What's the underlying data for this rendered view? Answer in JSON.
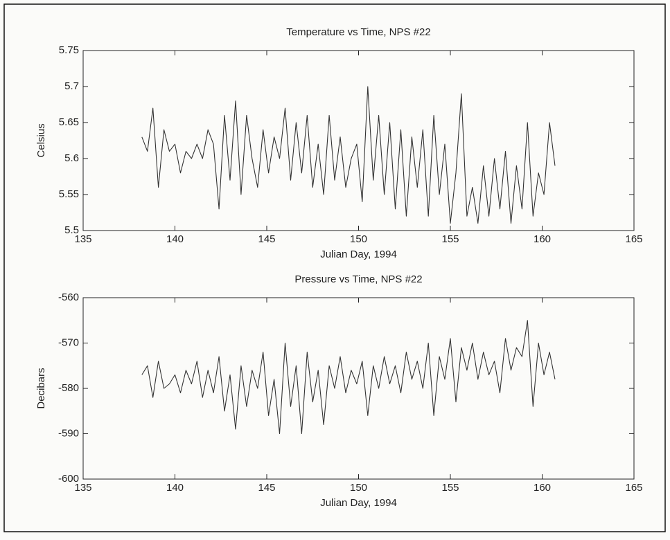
{
  "chart_data": [
    {
      "type": "line",
      "title": "Temperature vs Time, NPS #22",
      "xlabel": "Julian Day, 1994",
      "ylabel": "Celsius",
      "color": "#333333",
      "xlim": [
        135,
        165
      ],
      "xticks": [
        135,
        140,
        145,
        150,
        155,
        160,
        165
      ],
      "ylim": [
        5.5,
        5.75
      ],
      "yticks": [
        5.5,
        5.55,
        5.6,
        5.65,
        5.7,
        5.75
      ],
      "x": [
        138.2,
        138.5,
        138.8,
        139.1,
        139.4,
        139.7,
        140,
        140.3,
        140.6,
        140.9,
        141.2,
        141.5,
        141.8,
        142.1,
        142.4,
        142.7,
        143,
        143.3,
        143.6,
        143.9,
        144.2,
        144.5,
        144.8,
        145.1,
        145.4,
        145.7,
        146,
        146.3,
        146.6,
        146.9,
        147.2,
        147.5,
        147.8,
        148.1,
        148.4,
        148.7,
        149,
        149.3,
        149.6,
        149.9,
        150.2,
        150.5,
        150.8,
        151.1,
        151.4,
        151.7,
        152,
        152.3,
        152.6,
        152.9,
        153.2,
        153.5,
        153.8,
        154.1,
        154.4,
        154.7,
        155,
        155.3,
        155.6,
        155.9,
        156.2,
        156.5,
        156.8,
        157.1,
        157.4,
        157.7,
        158,
        158.3,
        158.6,
        158.9,
        159.2,
        159.5,
        159.8,
        160.1,
        160.4,
        160.7
      ],
      "values": [
        5.63,
        5.61,
        5.67,
        5.56,
        5.64,
        5.61,
        5.62,
        5.58,
        5.61,
        5.6,
        5.62,
        5.6,
        5.64,
        5.62,
        5.53,
        5.66,
        5.57,
        5.68,
        5.55,
        5.66,
        5.6,
        5.56,
        5.64,
        5.58,
        5.63,
        5.6,
        5.67,
        5.57,
        5.65,
        5.58,
        5.66,
        5.56,
        5.62,
        5.55,
        5.66,
        5.57,
        5.63,
        5.56,
        5.6,
        5.62,
        5.54,
        5.7,
        5.57,
        5.66,
        5.55,
        5.65,
        5.53,
        5.64,
        5.52,
        5.63,
        5.56,
        5.64,
        5.52,
        5.66,
        5.55,
        5.62,
        5.51,
        5.58,
        5.69,
        5.52,
        5.56,
        5.51,
        5.59,
        5.52,
        5.6,
        5.53,
        5.61,
        5.51,
        5.59,
        5.53,
        5.65,
        5.52,
        5.58,
        5.55,
        5.65,
        5.59
      ]
    },
    {
      "type": "line",
      "title": "Pressure vs Time, NPS #22",
      "xlabel": "Julian Day, 1994",
      "ylabel": "Decibars",
      "color": "#333333",
      "xlim": [
        135,
        165
      ],
      "xticks": [
        135,
        140,
        145,
        150,
        155,
        160,
        165
      ],
      "ylim": [
        -600,
        -560
      ],
      "yticks": [
        -600,
        -590,
        -580,
        -570,
        -560
      ],
      "x": [
        138.2,
        138.5,
        138.8,
        139.1,
        139.4,
        139.7,
        140,
        140.3,
        140.6,
        140.9,
        141.2,
        141.5,
        141.8,
        142.1,
        142.4,
        142.7,
        143,
        143.3,
        143.6,
        143.9,
        144.2,
        144.5,
        144.8,
        145.1,
        145.4,
        145.7,
        146,
        146.3,
        146.6,
        146.9,
        147.2,
        147.5,
        147.8,
        148.1,
        148.4,
        148.7,
        149,
        149.3,
        149.6,
        149.9,
        150.2,
        150.5,
        150.8,
        151.1,
        151.4,
        151.7,
        152,
        152.3,
        152.6,
        152.9,
        153.2,
        153.5,
        153.8,
        154.1,
        154.4,
        154.7,
        155,
        155.3,
        155.6,
        155.9,
        156.2,
        156.5,
        156.8,
        157.1,
        157.4,
        157.7,
        158,
        158.3,
        158.6,
        158.9,
        159.2,
        159.5,
        159.8,
        160.1,
        160.4,
        160.7
      ],
      "values": [
        -577,
        -575,
        -582,
        -574,
        -580,
        -579,
        -577,
        -581,
        -576,
        -579,
        -574,
        -582,
        -576,
        -581,
        -573,
        -585,
        -577,
        -589,
        -575,
        -584,
        -576,
        -580,
        -572,
        -586,
        -578,
        -590,
        -570,
        -584,
        -575,
        -590,
        -572,
        -583,
        -576,
        -588,
        -575,
        -580,
        -573,
        -581,
        -576,
        -579,
        -574,
        -586,
        -575,
        -580,
        -573,
        -579,
        -575,
        -581,
        -572,
        -578,
        -574,
        -580,
        -570,
        -586,
        -573,
        -578,
        -569,
        -583,
        -571,
        -576,
        -570,
        -578,
        -572,
        -577,
        -574,
        -581,
        -569,
        -576,
        -571,
        -573,
        -565,
        -584,
        -570,
        -577,
        -572,
        -578
      ]
    }
  ]
}
